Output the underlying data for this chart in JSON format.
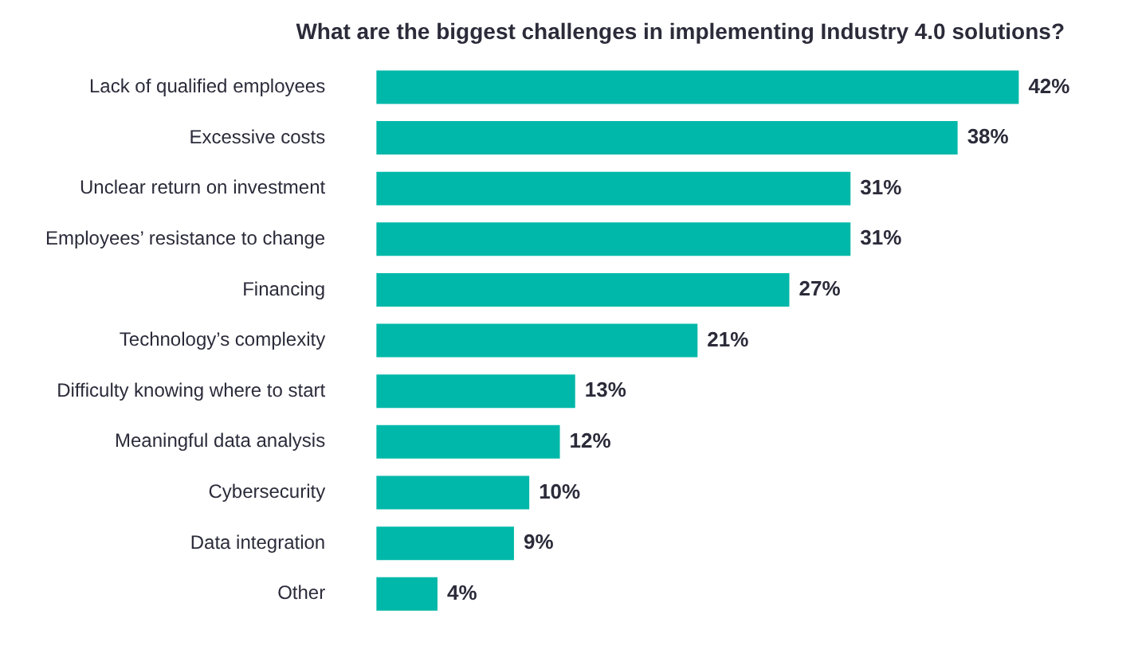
{
  "chart_data": {
    "type": "bar",
    "orientation": "horizontal",
    "title": "What are the biggest challenges in implementing Industry 4.0 solutions?",
    "categories": [
      "Lack of qualified employees",
      "Excessive costs",
      "Unclear return on investment",
      "Employees’ resistance to change",
      "Financing",
      "Technology’s complexity",
      "Difficulty knowing where to start",
      "Meaningful data analysis",
      "Cybersecurity",
      "Data integration",
      "Other"
    ],
    "values": [
      42,
      38,
      31,
      31,
      27,
      21,
      13,
      12,
      10,
      9,
      4
    ],
    "value_labels": [
      "42%",
      "38%",
      "31%",
      "31%",
      "27%",
      "21%",
      "13%",
      "12%",
      "10%",
      "9%",
      "4%"
    ],
    "color": "#00b8a9"
  }
}
